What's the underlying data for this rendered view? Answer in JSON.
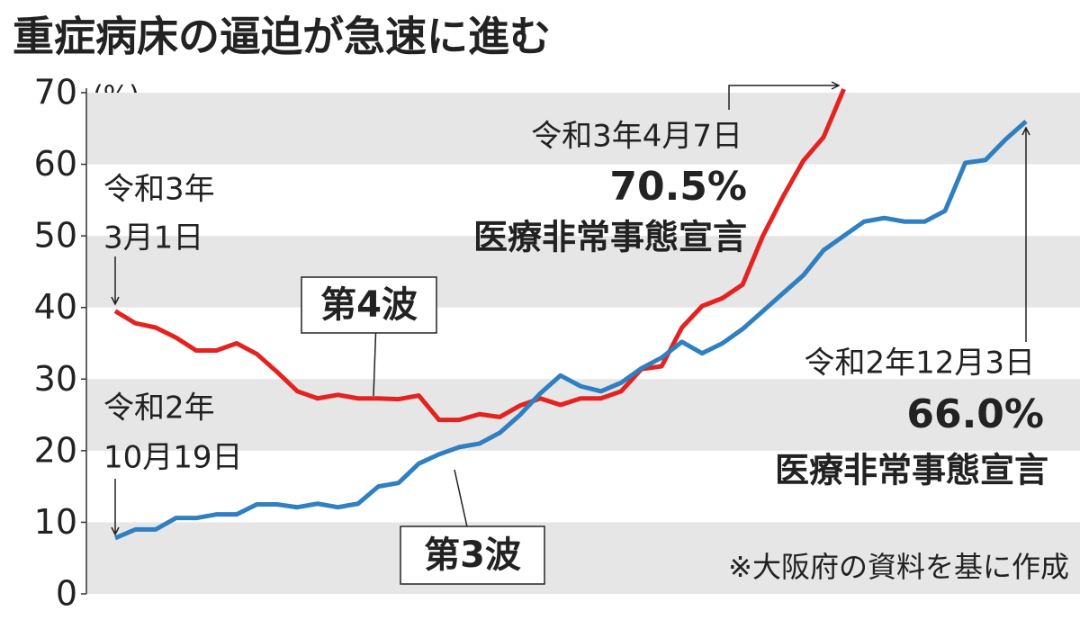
{
  "chart_data": {
    "type": "line",
    "title": "重症病床の逼迫が急速に進む",
    "y_unit": "(%)",
    "ylim": [
      0,
      70
    ],
    "yticks": [
      0,
      10,
      20,
      30,
      40,
      50,
      60,
      70
    ],
    "xlim": [
      0,
      45
    ],
    "series": [
      {
        "name": "第4波",
        "color": "#e42320",
        "values": [
          39.5,
          37.8,
          37.2,
          35.8,
          34,
          34,
          35,
          33.5,
          31,
          28.3,
          27.3,
          27.8,
          27.3,
          27.3,
          27.2,
          27.7,
          24.3,
          24.3,
          25.1,
          24.7,
          26.3,
          27.3,
          26.4,
          27.3,
          27.3,
          28.3,
          31.4,
          31.8,
          37.2,
          40.2,
          41.3,
          43.2,
          50,
          55.5,
          60.5,
          63.8,
          70.5
        ]
      },
      {
        "name": "第3波",
        "color": "#2f7fc1",
        "values": [
          7.8,
          9,
          9,
          10.6,
          10.6,
          11.1,
          11.1,
          12.5,
          12.5,
          12.1,
          12.6,
          12.1,
          12.6,
          15,
          15.5,
          18.2,
          19.5,
          20.5,
          21,
          22.5,
          25,
          28,
          30.5,
          29,
          28.3,
          29.5,
          31.5,
          33,
          35.2,
          33.6,
          35,
          37,
          39.5,
          42,
          44.5,
          48,
          50,
          52,
          52.5,
          52,
          52,
          53.5,
          60.2,
          60.6,
          63.5,
          66
        ]
      }
    ],
    "annotations": [
      "令和3年",
      "3月1日",
      "令和3年4月7日",
      "70.5%",
      "医療非常事態宣言",
      "令和2年12月3日",
      "66.0%",
      "医療非常事態宣言",
      "令和2年",
      "10月19日"
    ],
    "note": "※大阪府の資料を基に作成"
  }
}
